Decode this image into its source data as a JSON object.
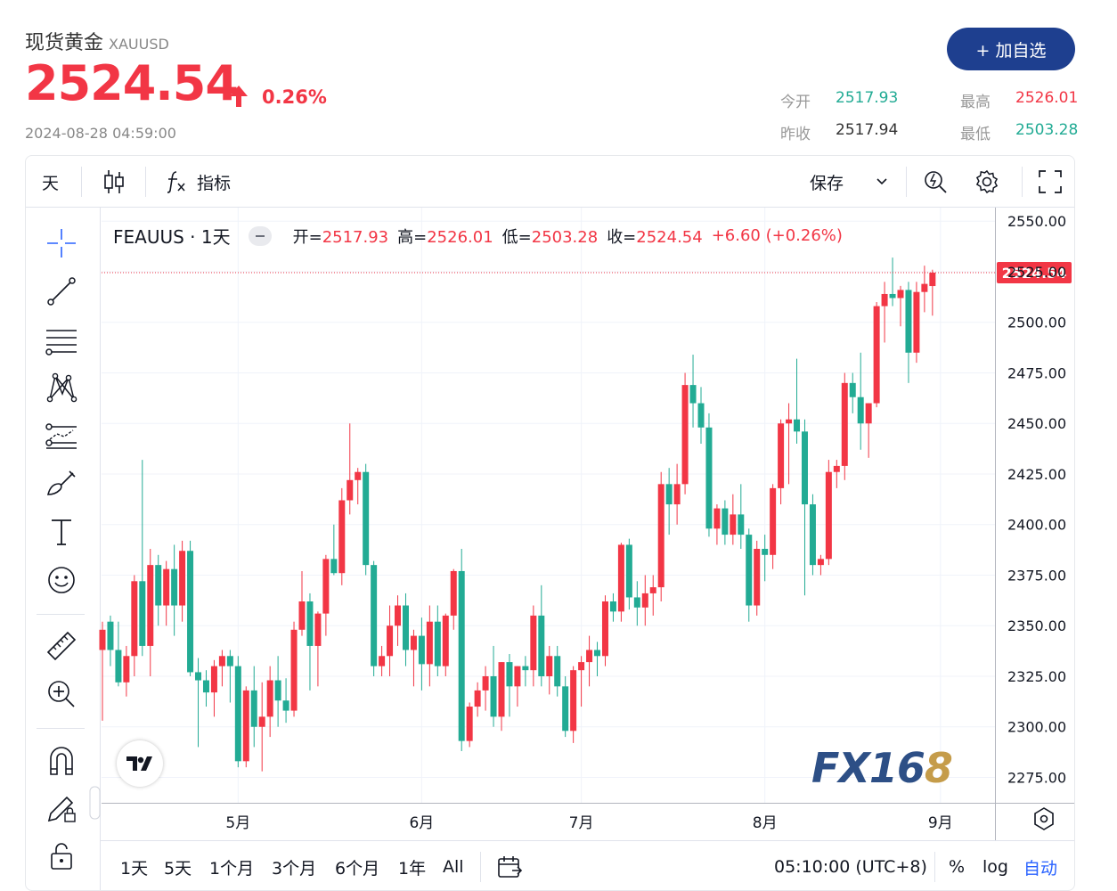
{
  "header": {
    "name": "现货黄金",
    "symbol": "XAUUSD",
    "price": "2524.54",
    "change_pct": "0.26%",
    "timestamp": "2024-08-28 04:59:00",
    "add_button": "+ 加自选",
    "stats": {
      "open_label": "今开",
      "open": "2517.93",
      "high_label": "最高",
      "high": "2526.01",
      "prev_label": "昨收",
      "prev": "2517.94",
      "low_label": "最低",
      "low": "2503.28"
    }
  },
  "toolbar": {
    "interval": "天",
    "indicators": "指标",
    "save": "保存"
  },
  "legend": {
    "title": "FEAUUS · 1天",
    "open_label": "开=",
    "open": "2517.93",
    "high_label": "高=",
    "high": "2526.01",
    "low_label": "低=",
    "low": "2503.28",
    "close_label": "收=",
    "close": "2524.54",
    "change": "+6.60 (+0.26%)"
  },
  "bottombar": {
    "ranges": [
      "1天",
      "5天",
      "1个月",
      "3个月",
      "6个月",
      "1年",
      "All"
    ],
    "time": "05:10:00 (UTC+8)",
    "percent": "%",
    "log": "log",
    "auto": "自动"
  },
  "watermark": {
    "text": "FX16",
    "accent": "8"
  },
  "colors": {
    "up": "#f23645",
    "down": "#22ab94",
    "brand": "#1e3f8f",
    "stat_down": "#22ab94"
  },
  "icons": [
    "crosshair-icon",
    "trend-line-icon",
    "fib-retracement-icon",
    "pattern-icon",
    "forecast-icon",
    "brush-icon",
    "text-icon",
    "emoji-icon",
    "ruler-icon",
    "zoom-in-icon",
    "magnet-icon",
    "lock-drawing-icon",
    "unlock-icon",
    "candles-icon",
    "fx-icon",
    "chevron-down-icon",
    "quick-search-icon",
    "gear-icon",
    "fullscreen-icon",
    "calendar-range-icon",
    "scale-settings-icon",
    "tradingview-logo"
  ],
  "chart_data": {
    "type": "candlestick",
    "y_ticks": [
      "2550.00",
      "2525.00",
      "2500.00",
      "2475.00",
      "2450.00",
      "2425.00",
      "2400.00",
      "2375.00",
      "2350.00",
      "2325.00",
      "2300.00",
      "2275.00"
    ],
    "ylim": [
      2262,
      2562
    ],
    "x_ticks": [
      {
        "label": "5月",
        "index": 17
      },
      {
        "label": "6月",
        "index": 40
      },
      {
        "label": "7月",
        "index": 60
      },
      {
        "label": "8月",
        "index": 83
      },
      {
        "label": "9月",
        "index": 105
      }
    ],
    "last_price": "2524.54",
    "last_value": 2524.54,
    "candles": [
      [
        2338,
        2352,
        2303,
        2348
      ],
      [
        2352,
        2355,
        2330,
        2338
      ],
      [
        2338,
        2352,
        2320,
        2322
      ],
      [
        2322,
        2340,
        2315,
        2335
      ],
      [
        2335,
        2375,
        2325,
        2372
      ],
      [
        2372,
        2432,
        2335,
        2340
      ],
      [
        2340,
        2388,
        2325,
        2380
      ],
      [
        2380,
        2385,
        2350,
        2360
      ],
      [
        2360,
        2382,
        2350,
        2378
      ],
      [
        2378,
        2390,
        2345,
        2360
      ],
      [
        2360,
        2392,
        2352,
        2387
      ],
      [
        2387,
        2392,
        2325,
        2327
      ],
      [
        2327,
        2334,
        2290,
        2323
      ],
      [
        2323,
        2328,
        2310,
        2317
      ],
      [
        2317,
        2333,
        2305,
        2330
      ],
      [
        2330,
        2338,
        2320,
        2335
      ],
      [
        2335,
        2338,
        2312,
        2330
      ],
      [
        2330,
        2335,
        2280,
        2283
      ],
      [
        2283,
        2320,
        2280,
        2318
      ],
      [
        2318,
        2330,
        2290,
        2300
      ],
      [
        2300,
        2322,
        2278,
        2305
      ],
      [
        2305,
        2330,
        2295,
        2323
      ],
      [
        2323,
        2335,
        2300,
        2313
      ],
      [
        2313,
        2324,
        2302,
        2308
      ],
      [
        2308,
        2352,
        2305,
        2348
      ],
      [
        2348,
        2377,
        2345,
        2362
      ],
      [
        2362,
        2366,
        2318,
        2340
      ],
      [
        2340,
        2357,
        2320,
        2356
      ],
      [
        2356,
        2385,
        2345,
        2383
      ],
      [
        2383,
        2400,
        2375,
        2376
      ],
      [
        2376,
        2418,
        2370,
        2412
      ],
      [
        2412,
        2450,
        2405,
        2422
      ],
      [
        2422,
        2428,
        2410,
        2426
      ],
      [
        2426,
        2430,
        2375,
        2380
      ],
      [
        2380,
        2382,
        2325,
        2330
      ],
      [
        2330,
        2340,
        2325,
        2335
      ],
      [
        2335,
        2360,
        2325,
        2350
      ],
      [
        2350,
        2365,
        2340,
        2360
      ],
      [
        2360,
        2366,
        2330,
        2338
      ],
      [
        2338,
        2348,
        2320,
        2345
      ],
      [
        2345,
        2354,
        2318,
        2331
      ],
      [
        2331,
        2360,
        2320,
        2352
      ],
      [
        2352,
        2360,
        2325,
        2330
      ],
      [
        2330,
        2356,
        2325,
        2355
      ],
      [
        2355,
        2378,
        2348,
        2377
      ],
      [
        2377,
        2388,
        2288,
        2293
      ],
      [
        2293,
        2312,
        2290,
        2310
      ],
      [
        2310,
        2322,
        2305,
        2318
      ],
      [
        2318,
        2330,
        2308,
        2325
      ],
      [
        2325,
        2340,
        2300,
        2305
      ],
      [
        2305,
        2332,
        2298,
        2332
      ],
      [
        2332,
        2336,
        2305,
        2320
      ],
      [
        2320,
        2330,
        2310,
        2330
      ],
      [
        2330,
        2335,
        2320,
        2328
      ],
      [
        2328,
        2360,
        2320,
        2355
      ],
      [
        2355,
        2370,
        2320,
        2325
      ],
      [
        2325,
        2340,
        2316,
        2335
      ],
      [
        2335,
        2340,
        2315,
        2320
      ],
      [
        2320,
        2325,
        2295,
        2298
      ],
      [
        2298,
        2330,
        2292,
        2328
      ],
      [
        2328,
        2335,
        2310,
        2332
      ],
      [
        2332,
        2345,
        2320,
        2338
      ],
      [
        2338,
        2342,
        2325,
        2335
      ],
      [
        2335,
        2365,
        2330,
        2362
      ],
      [
        2362,
        2366,
        2352,
        2357
      ],
      [
        2357,
        2391,
        2352,
        2390
      ],
      [
        2390,
        2393,
        2358,
        2364
      ],
      [
        2364,
        2372,
        2350,
        2359
      ],
      [
        2359,
        2375,
        2350,
        2366
      ],
      [
        2366,
        2375,
        2355,
        2369
      ],
      [
        2369,
        2426,
        2362,
        2420
      ],
      [
        2420,
        2428,
        2395,
        2410
      ],
      [
        2410,
        2430,
        2400,
        2420
      ],
      [
        2420,
        2475,
        2415,
        2469
      ],
      [
        2469,
        2484,
        2448,
        2460
      ],
      [
        2460,
        2468,
        2440,
        2448
      ],
      [
        2448,
        2455,
        2394,
        2398
      ],
      [
        2398,
        2410,
        2390,
        2408
      ],
      [
        2408,
        2412,
        2390,
        2395
      ],
      [
        2395,
        2415,
        2390,
        2405
      ],
      [
        2405,
        2420,
        2388,
        2395
      ],
      [
        2395,
        2398,
        2352,
        2360
      ],
      [
        2360,
        2392,
        2355,
        2388
      ],
      [
        2388,
        2395,
        2372,
        2385
      ],
      [
        2385,
        2420,
        2378,
        2418
      ],
      [
        2418,
        2452,
        2410,
        2450
      ],
      [
        2450,
        2460,
        2420,
        2452
      ],
      [
        2452,
        2482,
        2440,
        2446
      ],
      [
        2446,
        2452,
        2365,
        2410
      ],
      [
        2410,
        2415,
        2375,
        2380
      ],
      [
        2380,
        2385,
        2375,
        2383
      ],
      [
        2383,
        2432,
        2380,
        2426
      ],
      [
        2426,
        2432,
        2418,
        2429
      ],
      [
        2429,
        2475,
        2422,
        2470
      ],
      [
        2470,
        2475,
        2455,
        2463
      ],
      [
        2463,
        2485,
        2437,
        2450
      ],
      [
        2450,
        2460,
        2433,
        2460
      ],
      [
        2460,
        2510,
        2458,
        2508
      ],
      [
        2508,
        2520,
        2490,
        2514
      ],
      [
        2514,
        2532,
        2508,
        2512
      ],
      [
        2512,
        2518,
        2498,
        2516
      ],
      [
        2516,
        2520,
        2470,
        2485
      ],
      [
        2485,
        2520,
        2480,
        2515
      ],
      [
        2515,
        2528,
        2505,
        2519
      ],
      [
        2517.93,
        2526.01,
        2503.28,
        2524.54
      ]
    ]
  }
}
